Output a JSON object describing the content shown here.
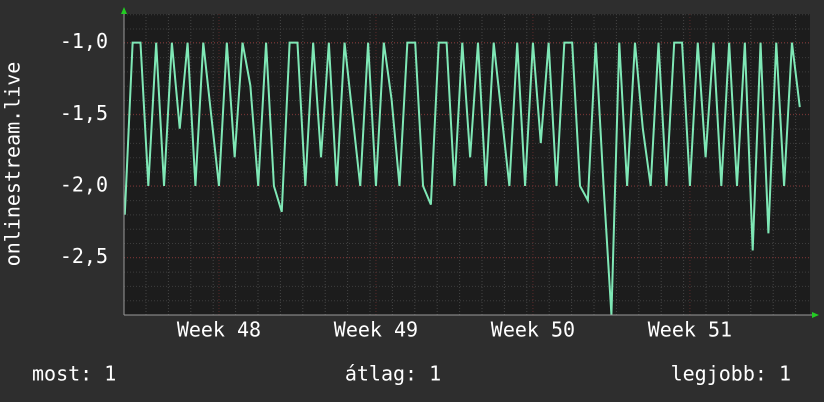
{
  "chart_data": {
    "type": "line",
    "y_label": "onlinestream.live",
    "x": [
      47.4,
      47.45,
      47.5,
      47.55,
      47.6,
      47.65,
      47.7,
      47.75,
      47.8,
      47.85,
      47.9,
      47.95,
      48.0,
      48.05,
      48.1,
      48.15,
      48.2,
      48.25,
      48.3,
      48.35,
      48.4,
      48.45,
      48.5,
      48.55,
      48.6,
      48.65,
      48.7,
      48.75,
      48.8,
      48.85,
      48.9,
      48.95,
      49.0,
      49.05,
      49.1,
      49.15,
      49.2,
      49.25,
      49.3,
      49.35,
      49.4,
      49.45,
      49.5,
      49.55,
      49.6,
      49.65,
      49.7,
      49.75,
      49.8,
      49.85,
      49.9,
      49.95,
      50.0,
      50.05,
      50.1,
      50.15,
      50.2,
      50.25,
      50.3,
      50.35,
      50.4,
      50.45,
      50.5,
      50.55,
      50.6,
      50.65,
      50.7,
      50.75,
      50.8,
      50.85,
      50.9,
      50.95,
      51.0,
      51.05,
      51.1,
      51.15,
      51.2,
      51.25,
      51.3,
      51.35,
      51.4,
      51.45,
      51.5,
      51.55,
      51.6,
      51.65,
      51.7
    ],
    "series": [
      {
        "color": "#7fe8b6",
        "values": [
          -2.2,
          -1.0,
          -1.0,
          -2.0,
          -1.0,
          -2.0,
          -1.0,
          -1.6,
          -1.0,
          -2.0,
          -1.0,
          -1.5,
          -2.0,
          -1.0,
          -1.8,
          -1.0,
          -1.3,
          -2.0,
          -1.0,
          -2.0,
          -2.18,
          -1.0,
          -1.0,
          -2.0,
          -1.0,
          -1.8,
          -1.0,
          -2.0,
          -1.0,
          -1.5,
          -2.0,
          -1.0,
          -2.0,
          -1.0,
          -1.4,
          -2.0,
          -1.0,
          -1.0,
          -2.0,
          -2.13,
          -1.0,
          -1.0,
          -2.0,
          -1.0,
          -1.8,
          -1.0,
          -2.0,
          -1.0,
          -1.5,
          -2.0,
          -1.0,
          -2.0,
          -1.0,
          -1.7,
          -1.0,
          -2.0,
          -1.0,
          -1.0,
          -2.0,
          -2.1,
          -1.0,
          -2.0,
          -2.9,
          -1.0,
          -2.0,
          -1.0,
          -1.6,
          -2.0,
          -1.0,
          -2.0,
          -1.0,
          -1.0,
          -2.0,
          -1.0,
          -1.8,
          -1.0,
          -2.0,
          -1.0,
          -2.0,
          -1.0,
          -2.45,
          -1.0,
          -2.33,
          -1.0,
          -2.0,
          -1.0,
          -1.45
        ]
      }
    ],
    "xlim": [
      47.395,
      51.765
    ],
    "xticks": [
      {
        "value": 48,
        "label": "Week 48"
      },
      {
        "value": 49,
        "label": "Week 49"
      },
      {
        "value": 50,
        "label": "Week 50"
      },
      {
        "value": 51,
        "label": "Week 51"
      }
    ],
    "ylim": [
      -2.9,
      -0.8
    ],
    "yticks": [
      {
        "value": -1,
        "label": "-1,0"
      },
      {
        "value": -1.5,
        "label": "-1,5"
      },
      {
        "value": -2,
        "label": "-2,0"
      },
      {
        "value": -2.5,
        "label": "-2,5"
      }
    ],
    "grid": true,
    "footer": [
      "most: 1",
      "átlag: 1",
      "legjobb: 1"
    ]
  }
}
